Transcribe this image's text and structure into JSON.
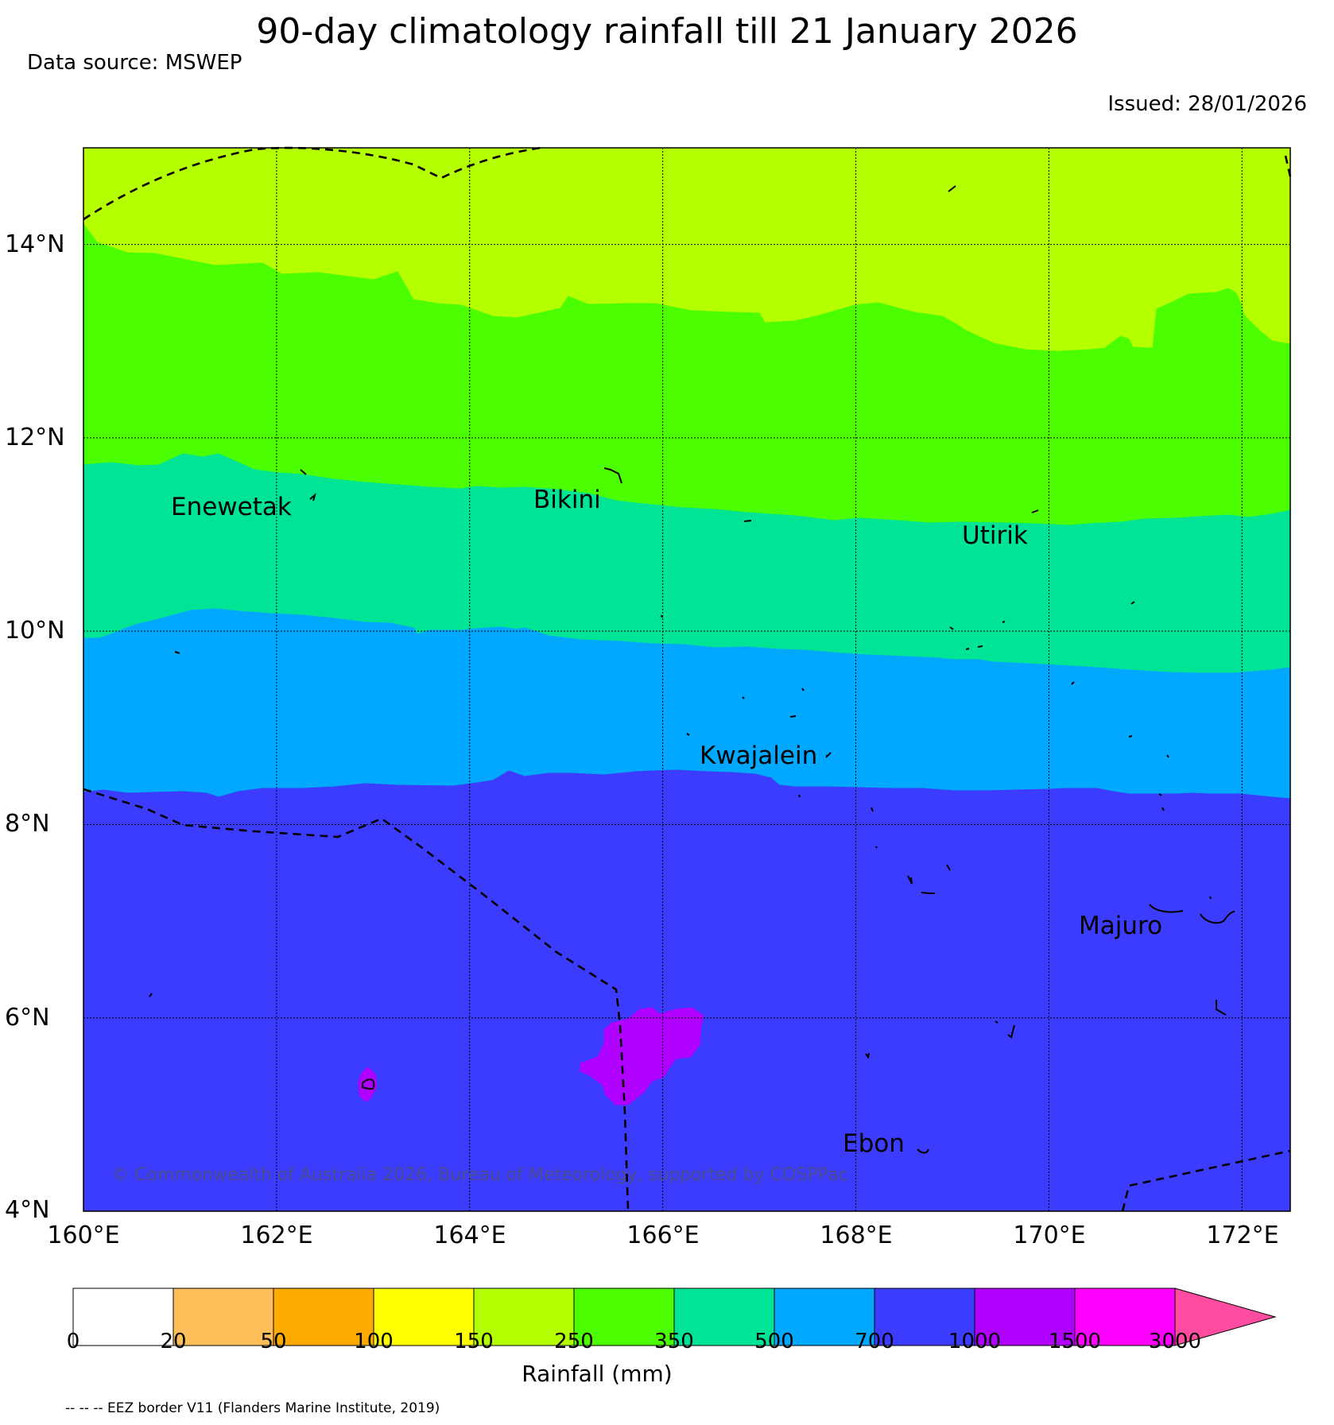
{
  "header": {
    "title": "90-day climatology rainfall till 21 January 2026",
    "source": "Data source: MSWEP",
    "issued": "Issued: 28/01/2026"
  },
  "map": {
    "lon_range": [
      160,
      172.5
    ],
    "lat_range": [
      4,
      15
    ],
    "lat_labels": [
      "14°N",
      "12°N",
      "10°N",
      "8°N",
      "6°N",
      "4°N"
    ],
    "lon_labels": [
      "160°E",
      "162°E",
      "164°E",
      "166°E",
      "168°E",
      "170°E",
      "172°E"
    ],
    "places": [
      {
        "name": "Enewetak"
      },
      {
        "name": "Bikini"
      },
      {
        "name": "Utirik"
      },
      {
        "name": "Kwajalein"
      },
      {
        "name": "Majuro"
      },
      {
        "name": "Ebon"
      }
    ],
    "band_colors": {
      "150-250": "#b4ff00",
      "250-350": "#4cff00",
      "350-500": "#00e496",
      "500-700": "#00a8ff",
      "700-1000": "#3c3cff",
      "1000-1500": "#b000ff"
    },
    "copyright": "© Commonwealth of Australia 2026, Bureau of Meteorology, supported by COSPPac"
  },
  "colorbar": {
    "title": "Rainfall (mm)",
    "ticks": [
      "0",
      "20",
      "50",
      "100",
      "150",
      "250",
      "350",
      "500",
      "700",
      "1000",
      "1500",
      "3000"
    ],
    "colors": [
      "#ffffff",
      "#ffbe5a",
      "#ffaa00",
      "#ffff00",
      "#b4ff00",
      "#4cff00",
      "#00e496",
      "#00a8ff",
      "#3c3cff",
      "#b000ff",
      "#ff00ff"
    ],
    "extend_color": "#ff4ca0"
  },
  "footnote": "-- -- -- EEZ border V11 (Flanders Marine Institute, 2019)"
}
